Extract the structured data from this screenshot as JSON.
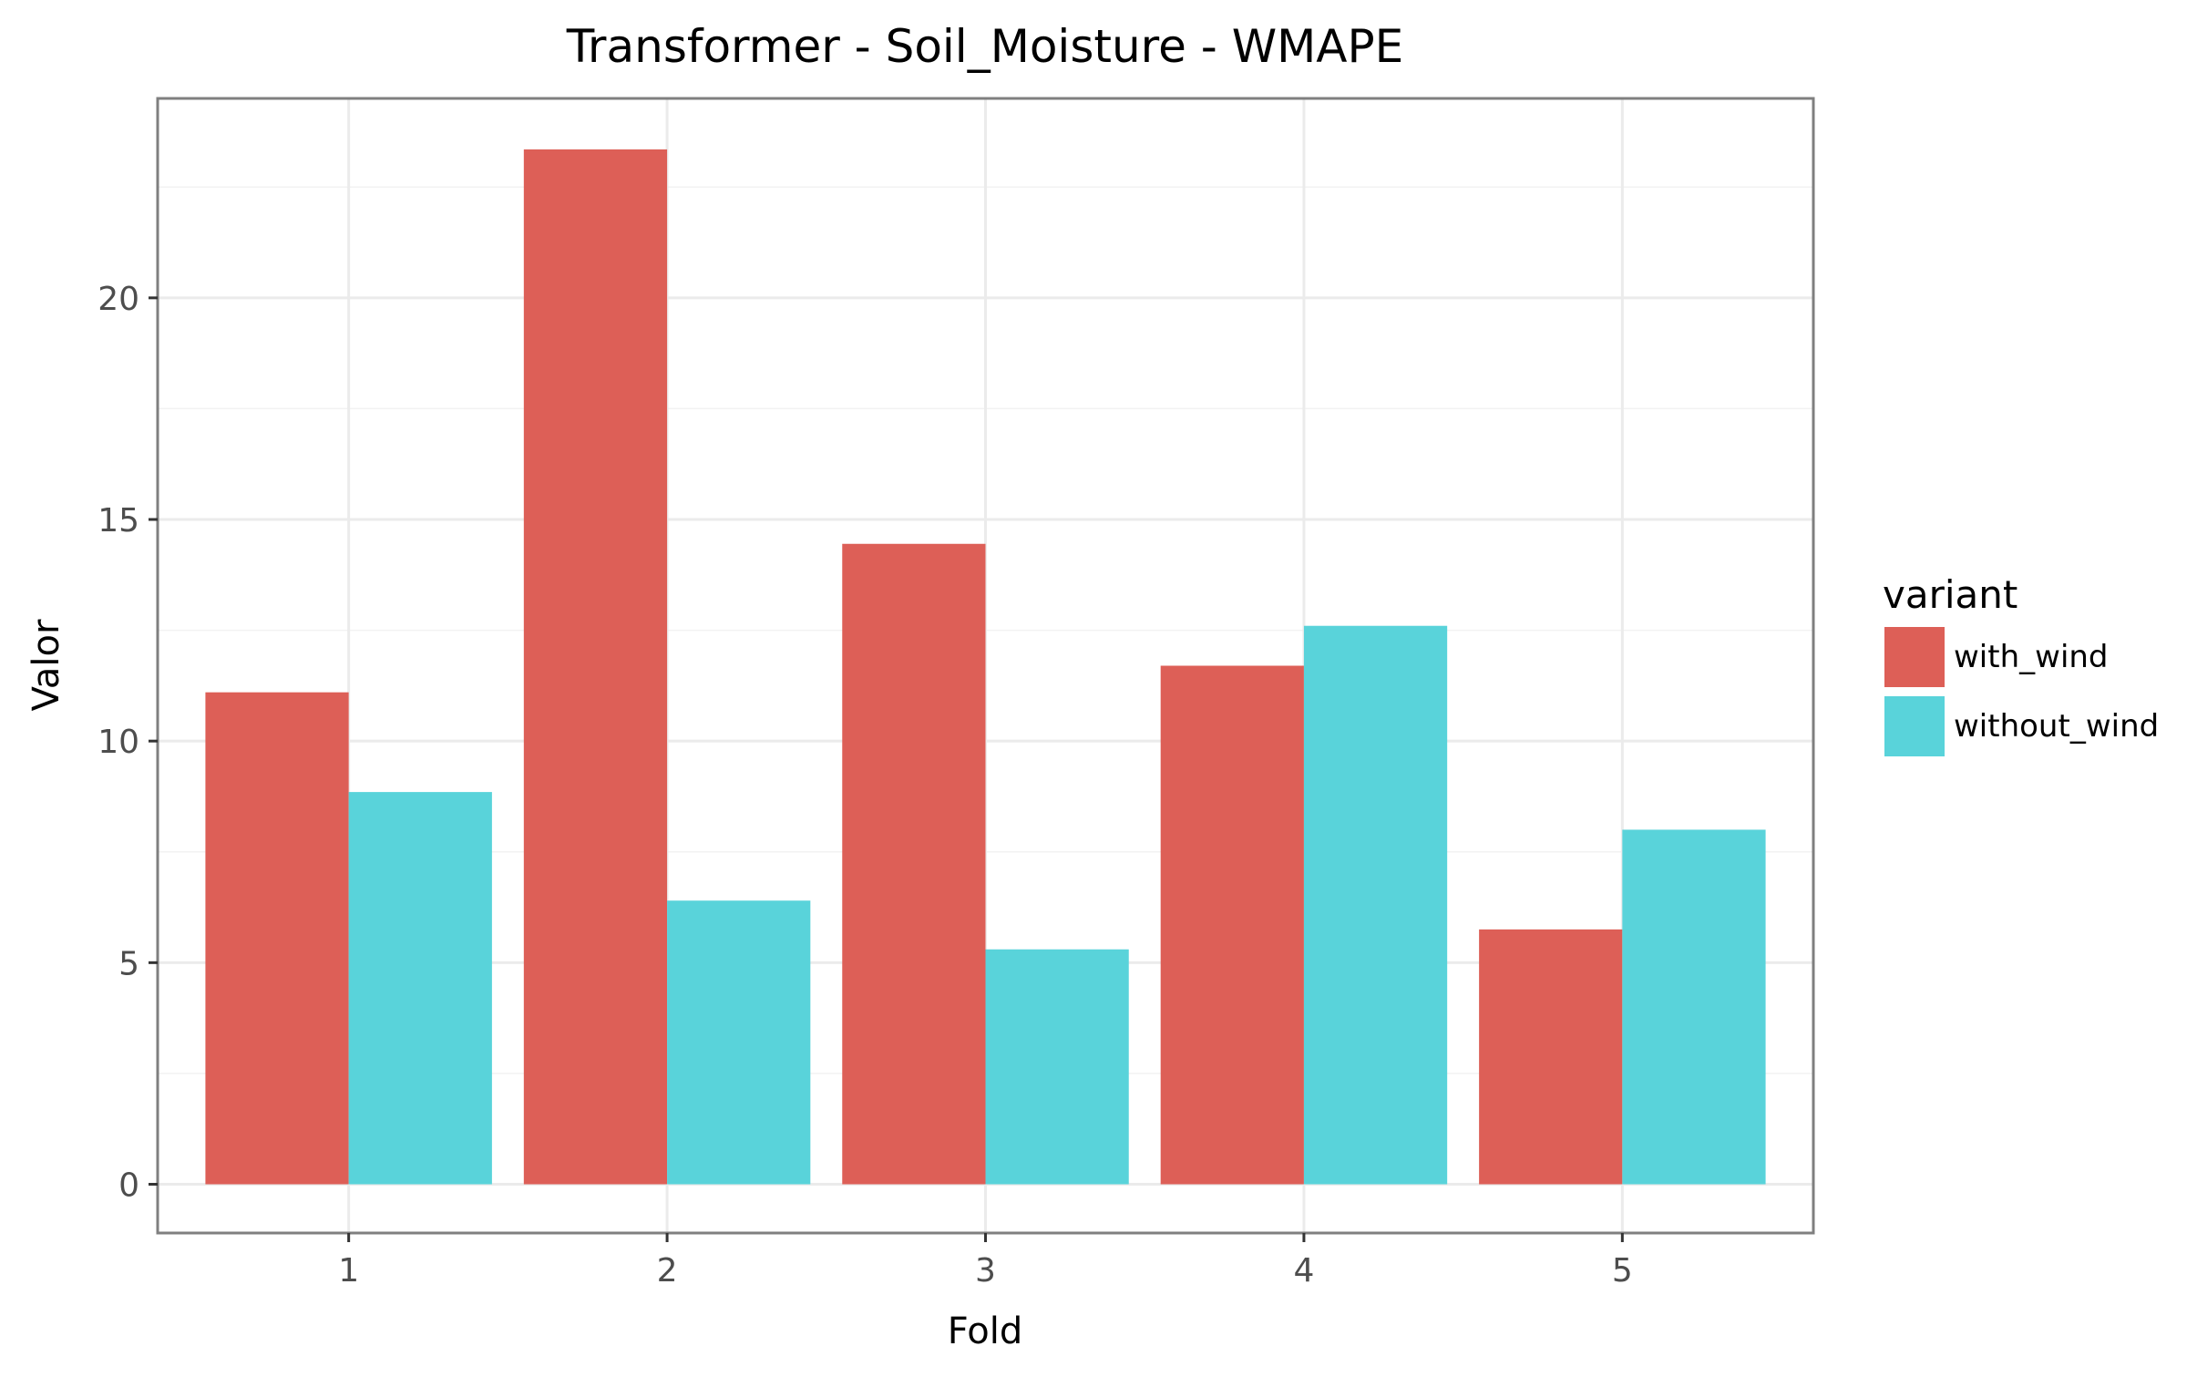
{
  "chart_data": {
    "type": "bar",
    "title": "Transformer - Soil_Moisture - WMAPE",
    "xlabel": "Fold",
    "ylabel": "Valor",
    "categories": [
      "1",
      "2",
      "3",
      "4",
      "5"
    ],
    "series": [
      {
        "name": "with_wind",
        "color": "#dd5f57",
        "values": [
          11.1,
          23.35,
          14.45,
          11.7,
          5.75
        ]
      },
      {
        "name": "without_wind",
        "color": "#59d3da",
        "values": [
          8.85,
          6.4,
          5.3,
          12.6,
          8.0
        ]
      }
    ],
    "ylim": [
      -1.1,
      24.5
    ],
    "yticks": [
      "0",
      "5",
      "10",
      "15",
      "20"
    ],
    "grid": true,
    "legend": {
      "title": "variant",
      "placement": "right"
    }
  }
}
